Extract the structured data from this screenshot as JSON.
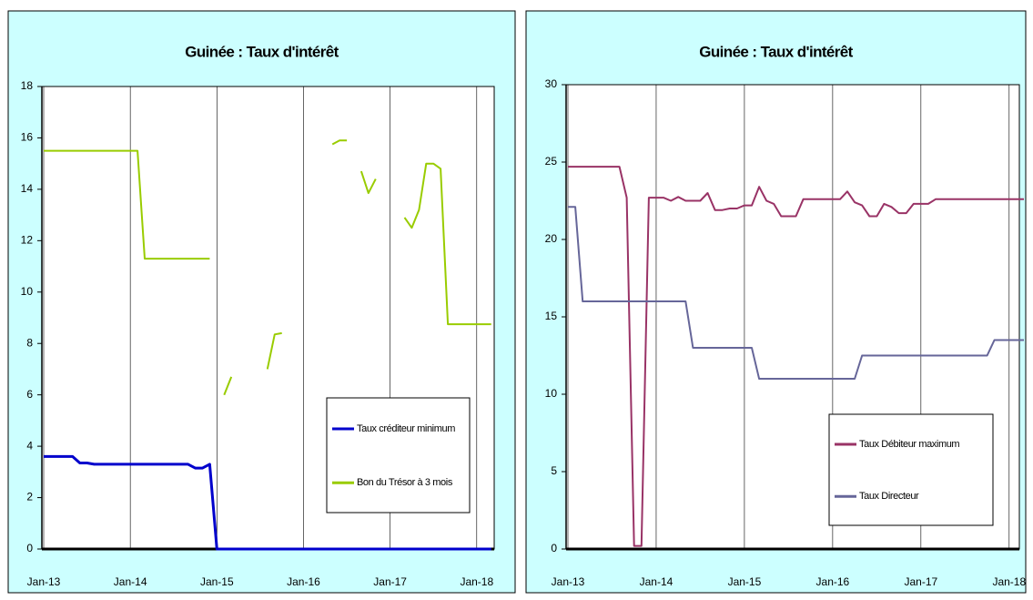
{
  "chart_data": [
    {
      "type": "line",
      "title": "Guinée : Taux d'intérêt",
      "categories": [
        "Jan-13",
        null,
        null,
        null,
        null,
        null,
        null,
        null,
        null,
        null,
        null,
        null,
        "Jan-14",
        null,
        null,
        null,
        null,
        null,
        null,
        null,
        null,
        null,
        null,
        null,
        "Jan-15",
        null,
        null,
        null,
        null,
        null,
        null,
        null,
        null,
        null,
        null,
        null,
        "Jan-16",
        null,
        null,
        null,
        null,
        null,
        null,
        null,
        null,
        null,
        null,
        null,
        "Jan-17",
        null,
        null,
        null,
        null,
        null,
        null,
        null,
        null,
        null,
        null,
        null,
        "Jan-18",
        null,
        null
      ],
      "series": [
        {
          "name": "Taux créditeur minimum",
          "color": "#0000cc",
          "values": [
            3.6,
            3.6,
            3.6,
            3.6,
            3.6,
            3.35,
            3.35,
            3.3,
            3.3,
            3.3,
            3.3,
            3.3,
            3.3,
            3.3,
            3.3,
            3.3,
            3.3,
            3.3,
            3.3,
            3.3,
            3.3,
            3.15,
            3.15,
            3.3,
            0,
            0,
            0,
            0,
            0,
            0,
            0,
            0,
            0,
            0,
            0,
            0,
            0,
            0,
            0,
            0,
            0,
            0,
            0,
            0,
            0,
            0,
            0,
            0,
            0,
            0,
            0,
            0,
            0,
            0,
            0,
            0,
            0,
            0,
            0,
            0,
            0,
            0,
            0
          ]
        },
        {
          "name": "Bon du Trésor à 3 mois",
          "color": "#99cc00",
          "values": [
            15.5,
            15.5,
            15.5,
            15.5,
            15.5,
            15.5,
            15.5,
            15.5,
            15.5,
            15.5,
            15.5,
            15.5,
            15.5,
            15.5,
            11.3,
            11.3,
            11.3,
            11.3,
            11.3,
            11.3,
            11.3,
            11.3,
            11.3,
            11.3,
            null,
            6.0,
            6.7,
            null,
            null,
            null,
            null,
            7.0,
            8.35,
            8.4,
            null,
            null,
            null,
            null,
            null,
            null,
            15.75,
            15.9,
            15.9,
            null,
            14.7,
            13.85,
            14.4,
            null,
            null,
            null,
            12.9,
            12.5,
            13.2,
            15.0,
            15.0,
            14.8,
            8.75,
            8.75,
            8.75,
            8.75,
            8.75,
            8.75,
            8.75
          ]
        }
      ],
      "ylim": [
        0,
        18
      ],
      "yticks": [
        0,
        2,
        4,
        6,
        8,
        10,
        12,
        14,
        16,
        18
      ],
      "grid": true,
      "legend": "lower right"
    },
    {
      "type": "line",
      "title": "Guinée : Taux d'intérêt",
      "categories": [
        "Jan-13",
        null,
        null,
        null,
        null,
        null,
        null,
        null,
        null,
        null,
        null,
        null,
        "Jan-14",
        null,
        null,
        null,
        null,
        null,
        null,
        null,
        null,
        null,
        null,
        null,
        "Jan-15",
        null,
        null,
        null,
        null,
        null,
        null,
        null,
        null,
        null,
        null,
        null,
        "Jan-16",
        null,
        null,
        null,
        null,
        null,
        null,
        null,
        null,
        null,
        null,
        null,
        "Jan-17",
        null,
        null,
        null,
        null,
        null,
        null,
        null,
        null,
        null,
        null,
        null,
        "Jan-18",
        null,
        null
      ],
      "series": [
        {
          "name": "Taux Débiteur maximum",
          "color": "#993366",
          "values": [
            24.7,
            24.7,
            24.7,
            24.7,
            24.7,
            24.7,
            24.7,
            24.7,
            22.7,
            0.2,
            0.2,
            22.7,
            22.7,
            22.7,
            22.5,
            22.75,
            22.5,
            22.5,
            22.5,
            23.0,
            21.9,
            21.9,
            22.0,
            22.0,
            22.2,
            22.2,
            23.4,
            22.5,
            22.3,
            21.5,
            21.5,
            21.5,
            22.6,
            22.6,
            22.6,
            22.6,
            22.6,
            22.6,
            23.1,
            22.4,
            22.2,
            21.5,
            21.5,
            22.3,
            22.1,
            21.7,
            21.7,
            22.3,
            22.3,
            22.3,
            22.6,
            22.6,
            22.6,
            22.6,
            22.6,
            22.6,
            22.6,
            22.6,
            22.6,
            22.6,
            22.6,
            22.6,
            22.6
          ]
        },
        {
          "name": "Taux Directeur",
          "color": "#666699",
          "values": [
            22.1,
            22.1,
            16.0,
            16.0,
            16.0,
            16.0,
            16.0,
            16.0,
            16.0,
            16.0,
            16.0,
            16.0,
            16.0,
            16.0,
            16.0,
            16.0,
            16.0,
            13.0,
            13.0,
            13.0,
            13.0,
            13.0,
            13.0,
            13.0,
            13.0,
            13.0,
            11.0,
            11.0,
            11.0,
            11.0,
            11.0,
            11.0,
            11.0,
            11.0,
            11.0,
            11.0,
            11.0,
            11.0,
            11.0,
            11.0,
            12.5,
            12.5,
            12.5,
            12.5,
            12.5,
            12.5,
            12.5,
            12.5,
            12.5,
            12.5,
            12.5,
            12.5,
            12.5,
            12.5,
            12.5,
            12.5,
            12.5,
            12.5,
            13.5,
            13.5,
            13.5,
            13.5,
            13.5
          ]
        }
      ],
      "ylim": [
        0,
        30
      ],
      "yticks": [
        0,
        5,
        10,
        15,
        20,
        25,
        30
      ],
      "grid": true,
      "legend": "lower right"
    }
  ]
}
